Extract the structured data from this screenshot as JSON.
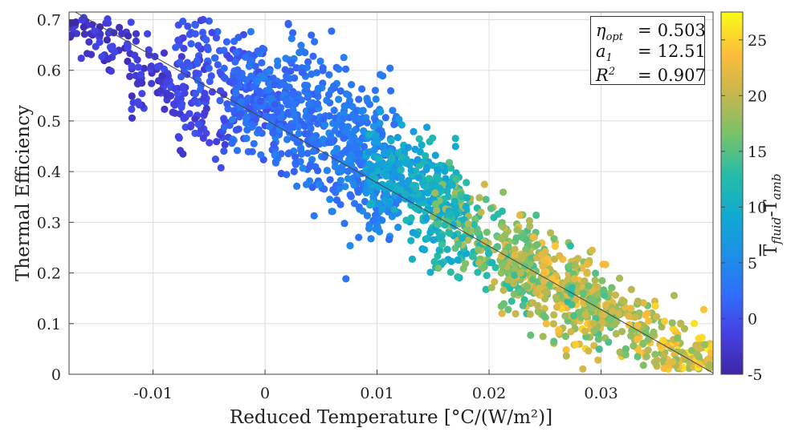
{
  "chart_data": {
    "type": "scatter",
    "title": "",
    "xlabel": "Reduced Temperature [°C/(W/m²)]",
    "ylabel": "Thermal Efficiency",
    "xlim": [
      -0.0175,
      0.04
    ],
    "ylim": [
      0,
      0.715
    ],
    "xticks": [
      -0.01,
      0,
      0.01,
      0.02,
      0.03
    ],
    "xtick_labels": [
      "-0.01",
      "0",
      "0.01",
      "0.02",
      "0.03"
    ],
    "yticks": [
      0,
      0.1,
      0.2,
      0.3,
      0.4,
      0.5,
      0.6,
      0.7
    ],
    "ytick_labels": [
      "0",
      "0.1",
      "0.2",
      "0.3",
      "0.4",
      "0.5",
      "0.6",
      "0.7"
    ],
    "grid": true,
    "fit_line": {
      "intercept": 0.503,
      "slope": -12.51,
      "x_range": [
        -0.0175,
        0.04
      ]
    },
    "annotation": {
      "eta_symbol": "η",
      "eta_sub": "opt",
      "eta_value": "0.503",
      "a_symbol": "a",
      "a_sub": "1",
      "a_value": "12.51",
      "r_symbol": "R",
      "r_sup": "2",
      "r_value": "0.907",
      "placement": "top-right"
    },
    "colorbar": {
      "label_bar": "T",
      "label_sub1": "fluid",
      "label_sep": "-T",
      "label_sub2": "amb",
      "range": [
        -5,
        27.5
      ],
      "ticks": [
        -5,
        0,
        5,
        10,
        15,
        20,
        25
      ],
      "tick_labels": [
        "-5",
        "0",
        "5",
        "10",
        "15",
        "20",
        "25"
      ],
      "colormap": "parula"
    },
    "series": [
      {
        "points_description_note": "",
        "clusters": [
          {
            "x": [
              -0.0175,
              -0.005
            ],
            "center": [
              -0.012,
              0.625
            ],
            "spread": 0.035,
            "n": 140,
            "c": [
              -5,
              1
            ]
          },
          {
            "x": [
              -0.012,
              -0.003
            ],
            "center": [
              -0.008,
              0.52
            ],
            "spread": 0.03,
            "n": 60,
            "c": [
              -4,
              1
            ]
          },
          {
            "x": [
              -0.008,
              0.002
            ],
            "center": [
              -0.003,
              0.58
            ],
            "spread": 0.05,
            "n": 160,
            "c": [
              -2,
              3
            ]
          },
          {
            "x": [
              -0.003,
              0.012
            ],
            "center": [
              0.004,
              0.47
            ],
            "spread": 0.06,
            "n": 520,
            "c": [
              0,
              6
            ]
          },
          {
            "x": [
              0.002,
              0.012
            ],
            "center": [
              0.008,
              0.52
            ],
            "spread": 0.06,
            "n": 120,
            "c": [
              1,
              5
            ]
          },
          {
            "x": [
              0.009,
              0.018
            ],
            "center": [
              0.013,
              0.37
            ],
            "spread": 0.05,
            "n": 320,
            "c": [
              5,
              14
            ]
          },
          {
            "x": [
              0.015,
              0.024
            ],
            "center": [
              0.019,
              0.27
            ],
            "spread": 0.045,
            "n": 260,
            "c": [
              8,
              24
            ]
          },
          {
            "x": [
              0.021,
              0.03
            ],
            "center": [
              0.025,
              0.18
            ],
            "spread": 0.05,
            "n": 300,
            "c": [
              12,
              27
            ]
          },
          {
            "x": [
              0.027,
              0.04
            ],
            "center": [
              0.033,
              0.1
            ],
            "spread": 0.04,
            "n": 320,
            "c": [
              13,
              27
            ]
          }
        ]
      }
    ]
  }
}
